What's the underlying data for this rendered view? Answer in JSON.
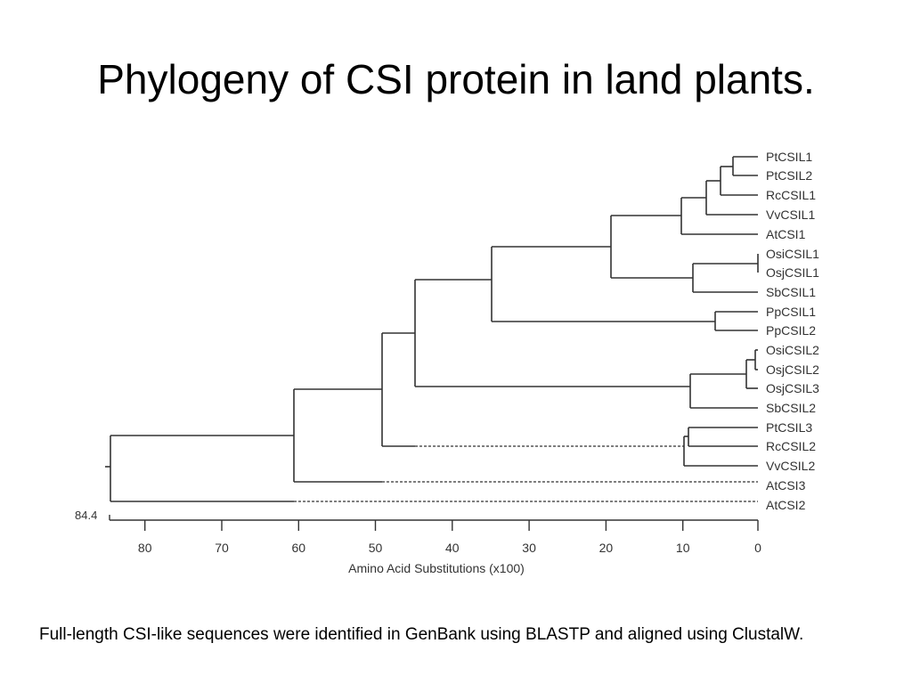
{
  "slide": {
    "title": "Phylogeny of CSI protein in land plants.",
    "caption": "Full-length CSI-like sequences were identified in GenBank using BLASTP and aligned using ClustalW."
  },
  "tree": {
    "root_value": "84.4",
    "axis_label": "Amino Acid Substitutions (x100)",
    "axis_ticks": [
      "80",
      "70",
      "60",
      "50",
      "40",
      "30",
      "20",
      "10",
      "0"
    ],
    "axis_range": [
      84.4,
      0
    ],
    "leaves": [
      "PtCSIL1",
      "PtCSIL2",
      "RcCSIL1",
      "VvCSIL1",
      "AtCSI1",
      "OsiCSIL1",
      "OsjCSIL1",
      "SbCSIL1",
      "PpCSIL1",
      "PpCSIL2",
      "OsiCSIL2",
      "OsjCSIL2",
      "OsjCSIL3",
      "SbCSIL2",
      "PtCSIL3",
      "RcCSIL2",
      "VvCSIL2",
      "AtCSI3",
      "AtCSI2"
    ],
    "line_color": "#333333"
  }
}
